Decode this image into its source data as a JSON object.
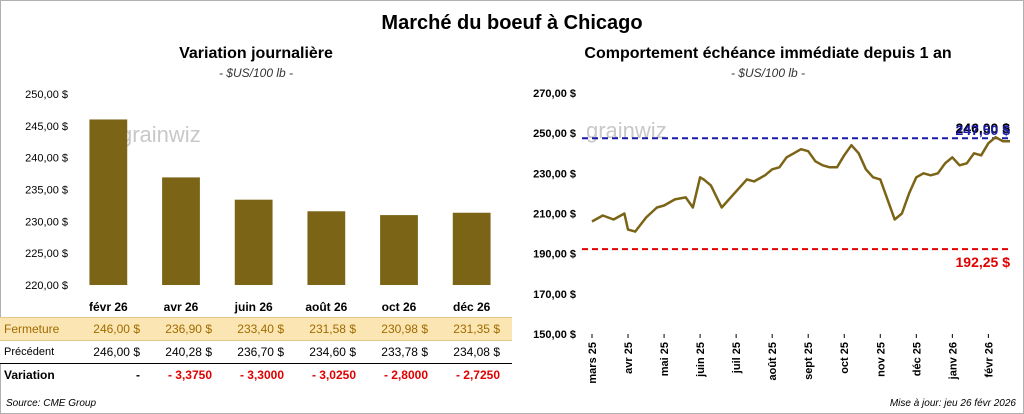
{
  "title": "Marché du boeuf à Chicago",
  "left": {
    "title": "Variation journalière",
    "subtitle": "- $US/100 lb -",
    "rows": {
      "fermeture_label": "Fermeture",
      "precedent_label": "Précédent",
      "variation_label": "Variation",
      "fermeture": [
        "246,00  $",
        "236,90  $",
        "233,40  $",
        "231,58  $",
        "230,98  $",
        "231,35  $"
      ],
      "precedent": [
        "246,00  $",
        "240,28  $",
        "236,70  $",
        "234,60  $",
        "233,78  $",
        "234,08  $"
      ],
      "variation": [
        "-",
        "- 3,3750",
        "- 3,3000",
        "- 3,0250",
        "- 2,8000",
        "- 2,7250"
      ]
    }
  },
  "right": {
    "title": "Comportement  échéance immédiate depuis 1 an",
    "subtitle": "- $US/100 lb -",
    "label_high": "247,50 $",
    "label_last": "246,00 $",
    "label_low": "192,25 $"
  },
  "watermark": "grainwiz",
  "source": "Source: CME Group",
  "update": "Mise à jour: jeu 26 févr 2026",
  "colors": {
    "bar": "#7b6415",
    "line": "#7b6415",
    "high": "#1a1aa8",
    "low": "#e00000",
    "fermeture_bg": "#fbe6b3"
  },
  "chart_data": [
    {
      "type": "bar",
      "title": "Variation journalière",
      "ylabel": "$US/100 lb",
      "categories": [
        "févr 26",
        "avr 26",
        "juin 26",
        "août 26",
        "oct 26",
        "déc 26"
      ],
      "values": [
        246.0,
        236.9,
        233.4,
        231.58,
        230.98,
        231.35
      ],
      "ylim": [
        220,
        250
      ],
      "yticks": [
        220,
        225,
        230,
        235,
        240,
        245,
        250
      ],
      "ytick_labels": [
        "220,00 $",
        "225,00 $",
        "230,00 $",
        "235,00 $",
        "240,00 $",
        "245,00 $",
        "250,00 $"
      ],
      "grid": false
    },
    {
      "type": "line",
      "title": "Comportement  échéance immédiate depuis 1 an",
      "ylabel": "$US/100 lb",
      "x_tick_labels": [
        "mars 25",
        "avr 25",
        "mai 25",
        "juin 25",
        "juil 25",
        "août 25",
        "sept 25",
        "oct 25",
        "nov 25",
        "déc 25",
        "janv 26",
        "févr 26"
      ],
      "ylim": [
        150,
        270
      ],
      "yticks": [
        150,
        170,
        190,
        210,
        230,
        250,
        270
      ],
      "ytick_labels": [
        "150,00 $",
        "170,00 $",
        "190,00 $",
        "210,00 $",
        "230,00 $",
        "250,00 $",
        "270,00 $"
      ],
      "reference_lines": [
        {
          "label": "247,50 $",
          "value": 247.5,
          "style": "dashed"
        },
        {
          "label": "192,25 $",
          "value": 192.25,
          "style": "dashed"
        }
      ],
      "last_value": 246.0,
      "x": [
        0,
        0.3,
        0.6,
        0.9,
        1.0,
        1.2,
        1.5,
        1.8,
        2.0,
        2.3,
        2.6,
        2.8,
        3.0,
        3.1,
        3.3,
        3.6,
        3.9,
        4.0,
        4.3,
        4.5,
        4.8,
        5.0,
        5.2,
        5.4,
        5.6,
        5.8,
        6.0,
        6.2,
        6.4,
        6.6,
        6.8,
        7.0,
        7.2,
        7.4,
        7.6,
        7.8,
        8.0,
        8.2,
        8.4,
        8.6,
        8.8,
        9.0,
        9.2,
        9.4,
        9.6,
        9.8,
        10.0,
        10.2,
        10.4,
        10.6,
        10.8,
        11.0,
        11.2,
        11.4,
        11.6
      ],
      "values": [
        206,
        209,
        207,
        210,
        202,
        201,
        208,
        213,
        214,
        217,
        218,
        213,
        228,
        227,
        224,
        213,
        219,
        221,
        227,
        226,
        229,
        232,
        233,
        238,
        240,
        242,
        241,
        236,
        234,
        233,
        233,
        239,
        244,
        240,
        232,
        228,
        227,
        217,
        207,
        210,
        220,
        228,
        230,
        229,
        230,
        235,
        238,
        234,
        235,
        240,
        239,
        245,
        248,
        246,
        246
      ]
    }
  ]
}
